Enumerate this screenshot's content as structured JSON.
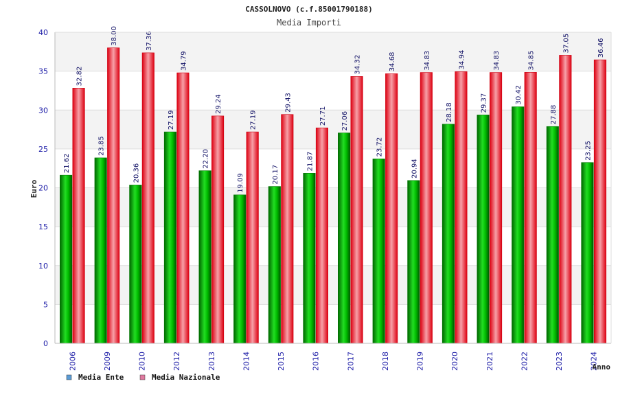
{
  "chart_data": {
    "type": "bar",
    "title": "CASSOLNOVO (c.f.85001790188)",
    "subtitle": "Media Importi",
    "xlabel": "Anno",
    "ylabel": "Euro",
    "ylim": [
      0,
      40
    ],
    "yticks": [
      0,
      5,
      10,
      15,
      20,
      25,
      30,
      35,
      40
    ],
    "categories": [
      "2006",
      "2009",
      "2010",
      "2012",
      "2013",
      "2014",
      "2015",
      "2016",
      "2017",
      "2018",
      "2019",
      "2020",
      "2021",
      "2022",
      "2023",
      "2024"
    ],
    "series": [
      {
        "name": "Media Ente",
        "color": "#00aa00",
        "legend_color": "#5b9bd5",
        "values": [
          21.62,
          23.85,
          20.36,
          27.19,
          22.2,
          19.09,
          20.17,
          21.87,
          27.06,
          23.72,
          20.94,
          28.18,
          29.37,
          30.42,
          27.88,
          23.25
        ],
        "labels": [
          "21.62",
          "23.85",
          "20.36",
          "27.19",
          "22.20",
          "19.09",
          "20.17",
          "21.87",
          "27.06",
          "23.72",
          "20.94",
          "28.18",
          "29.37",
          "30.42",
          "27.88",
          "23.25"
        ]
      },
      {
        "name": "Media Nazionale",
        "color": "#ee1122",
        "legend_color": "#e07aa0",
        "values": [
          32.82,
          38.0,
          37.36,
          34.79,
          29.24,
          27.19,
          29.43,
          27.71,
          34.32,
          34.68,
          34.83,
          34.94,
          34.83,
          34.85,
          37.05,
          36.46
        ],
        "labels": [
          "32.82",
          "38.00",
          "37.36",
          "34.79",
          "29.24",
          "27.19",
          "29.43",
          "27.71",
          "34.32",
          "34.68",
          "34.83",
          "34.94",
          "34.83",
          "34.85",
          "37.05",
          "36.46"
        ]
      }
    ],
    "grid": true,
    "legend_position": "bottom-left"
  }
}
